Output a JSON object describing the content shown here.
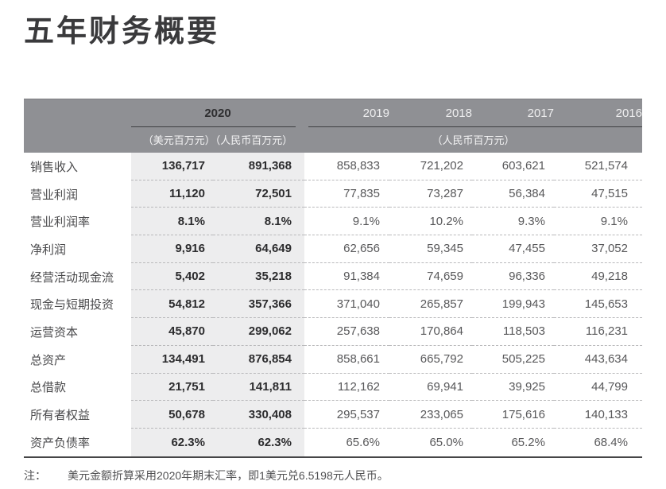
{
  "title": "五年财务概要",
  "table": {
    "header": {
      "year_current": "2020",
      "sub_current": "（美元百万元）（人民币百万元）",
      "years": [
        "2019",
        "2018",
        "2017",
        "2016"
      ],
      "sub_prior": "（人民币百万元）"
    },
    "rows": [
      {
        "label": "销售收入",
        "usd": "136,717",
        "rmb": "891,368",
        "y2019": "858,833",
        "y2018": "721,202",
        "y2017": "603,621",
        "y2016": "521,574"
      },
      {
        "label": "营业利润",
        "usd": "11,120",
        "rmb": "72,501",
        "y2019": "77,835",
        "y2018": "73,287",
        "y2017": "56,384",
        "y2016": "47,515"
      },
      {
        "label": "营业利润率",
        "usd": "8.1%",
        "rmb": "8.1%",
        "y2019": "9.1%",
        "y2018": "10.2%",
        "y2017": "9.3%",
        "y2016": "9.1%"
      },
      {
        "label": "净利润",
        "usd": "9,916",
        "rmb": "64,649",
        "y2019": "62,656",
        "y2018": "59,345",
        "y2017": "47,455",
        "y2016": "37,052"
      },
      {
        "label": "经营活动现金流",
        "usd": "5,402",
        "rmb": "35,218",
        "y2019": "91,384",
        "y2018": "74,659",
        "y2017": "96,336",
        "y2016": "49,218"
      },
      {
        "label": "现金与短期投资",
        "usd": "54,812",
        "rmb": "357,366",
        "y2019": "371,040",
        "y2018": "265,857",
        "y2017": "199,943",
        "y2016": "145,653"
      },
      {
        "label": "运营资本",
        "usd": "45,870",
        "rmb": "299,062",
        "y2019": "257,638",
        "y2018": "170,864",
        "y2017": "118,503",
        "y2016": "116,231"
      },
      {
        "label": "总资产",
        "usd": "134,491",
        "rmb": "876,854",
        "y2019": "858,661",
        "y2018": "665,792",
        "y2017": "505,225",
        "y2016": "443,634"
      },
      {
        "label": "总借款",
        "usd": "21,751",
        "rmb": "141,811",
        "y2019": "112,162",
        "y2018": "69,941",
        "y2017": "39,925",
        "y2016": "44,799"
      },
      {
        "label": "所有者权益",
        "usd": "50,678",
        "rmb": "330,408",
        "y2019": "295,537",
        "y2018": "233,065",
        "y2017": "175,616",
        "y2016": "140,133"
      },
      {
        "label": "资产负债率",
        "usd": "62.3%",
        "rmb": "62.3%",
        "y2019": "65.6%",
        "y2018": "65.0%",
        "y2017": "65.2%",
        "y2016": "68.4%"
      }
    ]
  },
  "note": {
    "label": "注：",
    "text": "美元金额折算采用2020年期末汇率，即1美元兑6.5198元人民币。"
  },
  "colors": {
    "header_band": "#8f9094",
    "column_highlight": "#ededee",
    "rule_dark": "#3f3f41",
    "dashed_divider": "#b9b9bb"
  }
}
